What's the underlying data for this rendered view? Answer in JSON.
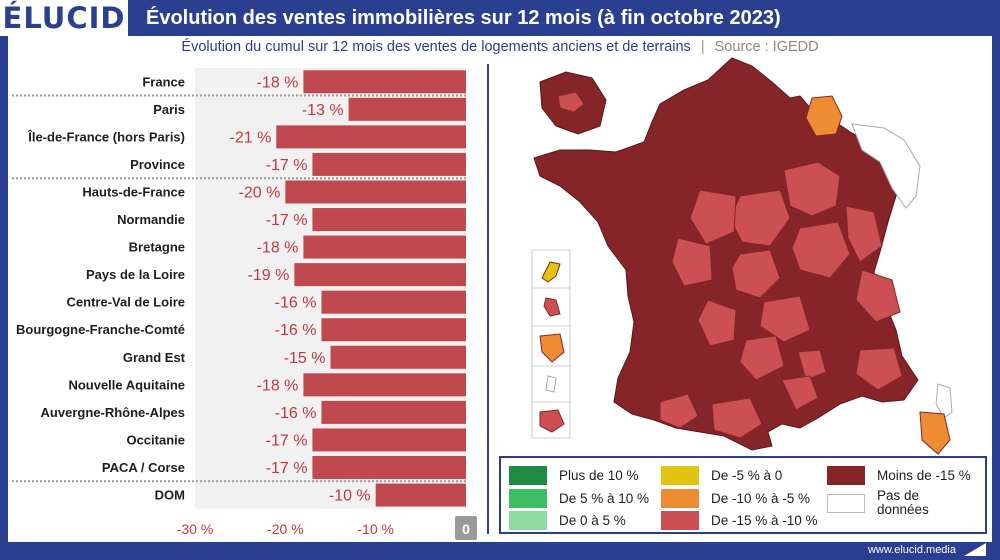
{
  "header": {
    "logo": "ÉLUCID",
    "title": "Évolution des ventes immobilières sur 12 mois (à fin octobre 2023)"
  },
  "subtitle": {
    "text": "Évolution du cumul sur 12 mois des ventes de logements anciens et de terrains",
    "separator": "|",
    "source": "Source : IGEDD"
  },
  "footer": {
    "url": "www.elucid.media"
  },
  "colors": {
    "bar": "#c0494f",
    "value_text": "#c0393f",
    "frame": "#2a3f8f",
    "zero_box": "#9a9a9a"
  },
  "chart_data": {
    "type": "bar",
    "orientation": "horizontal",
    "categories": [
      "France",
      "Paris",
      "Île-de-France (hors Paris)",
      "Province",
      "Hauts-de-France",
      "Normandie",
      "Bretagne",
      "Pays de la Loire",
      "Centre-Val de Loire",
      "Bourgogne-Franche-Comté",
      "Grand Est",
      "Nouvelle Aquitaine",
      "Auvergne-Rhône-Alpes",
      "Occitanie",
      "PACA / Corse",
      "DOM"
    ],
    "values": [
      -18,
      -13,
      -21,
      -17,
      -20,
      -17,
      -18,
      -19,
      -16,
      -16,
      -15,
      -18,
      -16,
      -17,
      -17,
      -10
    ],
    "value_labels": [
      "-18 %",
      "-13 %",
      "-21 %",
      "-17 %",
      "-20 %",
      "-17 %",
      "-18 %",
      "-19 %",
      "-16 %",
      "-16 %",
      "-15 %",
      "-18 %",
      "-16 %",
      "-17 %",
      "-17 %",
      "-10 %"
    ],
    "group_separators_after": [
      0,
      3,
      14
    ],
    "xlim": [
      -30,
      0
    ],
    "x_ticks": [
      -30,
      -20,
      -10,
      0
    ],
    "x_tick_labels": [
      "-30 %",
      "-20 %",
      "-10 %",
      "0"
    ],
    "grid": false,
    "legend": "none"
  },
  "map": {
    "description_legend_position": "bottom-right",
    "legend": [
      {
        "label": "Plus de 10 %",
        "color": "#1e8a44"
      },
      {
        "label": "De 5 % à 10 %",
        "color": "#3cc063"
      },
      {
        "label": "De 0 à 5 %",
        "color": "#8fdba3"
      },
      {
        "label": "De -5 % à 0",
        "color": "#e2c410"
      },
      {
        "label": "De -10 % à -5 %",
        "color": "#ee8c34"
      },
      {
        "label": "De -15 % à -10 %",
        "color": "#cc4f54"
      },
      {
        "label": "Moins de -15 %",
        "color": "#862528"
      },
      {
        "label": "Pas de\ndonnées",
        "color": "#ffffff"
      }
    ]
  }
}
